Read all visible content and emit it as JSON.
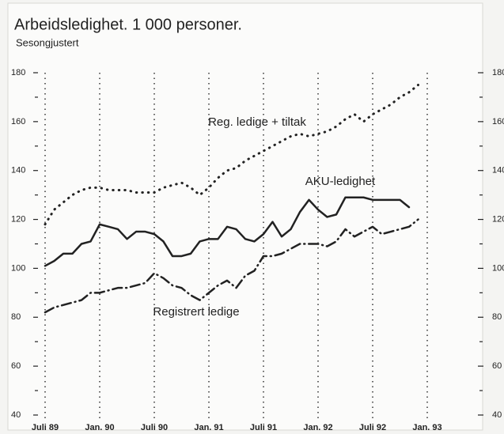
{
  "chart_data": {
    "type": "line",
    "title": "Arbeidsledighet. 1 000 personer.",
    "subtitle": "Sesongjustert",
    "categories": [
      "Juli 89",
      null,
      null,
      null,
      null,
      null,
      "Jan. 90",
      null,
      null,
      null,
      null,
      null,
      "Juli 90",
      null,
      null,
      null,
      null,
      null,
      "Jan. 91",
      null,
      null,
      null,
      null,
      null,
      "Juli 91",
      null,
      null,
      null,
      null,
      null,
      "Jan. 92",
      null,
      null,
      null,
      null,
      null,
      "Juli 92",
      null,
      null,
      null,
      null,
      null,
      "Jan. 93"
    ],
    "ylim": [
      40,
      180
    ],
    "yticks": [
      40,
      60,
      80,
      100,
      120,
      140,
      160,
      180
    ],
    "grid": true,
    "series": [
      {
        "name": "Reg. ledige + tiltak",
        "color": "#222222",
        "line_style": "dotted",
        "values": [
          118,
          124,
          127,
          130,
          132,
          133,
          133,
          132,
          132,
          132,
          131,
          131,
          131,
          133,
          134,
          135,
          133,
          130,
          133,
          137,
          140,
          141,
          144,
          146,
          148,
          150,
          152,
          154,
          155,
          154,
          155,
          156,
          158,
          161,
          163,
          160,
          163,
          165,
          167,
          170,
          172,
          175,
          null
        ]
      },
      {
        "name": "AKU-ledighet",
        "color": "#222222",
        "line_style": "solid",
        "values": [
          101,
          103,
          106,
          106,
          110,
          111,
          118,
          117,
          116,
          112,
          115,
          115,
          114,
          111,
          105,
          105,
          106,
          111,
          112,
          112,
          117,
          116,
          112,
          111,
          114,
          119,
          113,
          116,
          123,
          128,
          124,
          121,
          122,
          129,
          129,
          129,
          128,
          128,
          128,
          128,
          125,
          null,
          null
        ]
      },
      {
        "name": "Registrert ledige",
        "color": "#222222",
        "line_style": "dashdot",
        "values": [
          82,
          84,
          85,
          86,
          87,
          90,
          90,
          91,
          92,
          92,
          93,
          94,
          98,
          96,
          93,
          92,
          89,
          87,
          90,
          93,
          95,
          92,
          97,
          99,
          105,
          105,
          106,
          108,
          110,
          110,
          110,
          109,
          111,
          116,
          113,
          115,
          117,
          114,
          115,
          116,
          117,
          120,
          null
        ]
      }
    ]
  }
}
